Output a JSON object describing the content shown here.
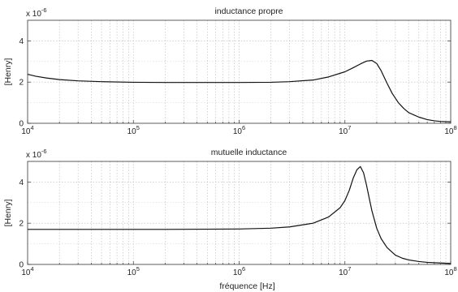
{
  "chart_data": [
    {
      "type": "line",
      "title": "inductance propre",
      "ylabel": "[Henry]",
      "xlabel": "",
      "xscale": "log",
      "xlim": [
        10000,
        100000000
      ],
      "ylim": [
        0,
        5
      ],
      "y_multiplier_label": "x 10",
      "y_multiplier_exponent": "-6",
      "grid": true,
      "x_tick_labels": [
        {
          "base": "10",
          "exp": "4",
          "value": 10000
        },
        {
          "base": "10",
          "exp": "5",
          "value": 100000
        },
        {
          "base": "10",
          "exp": "6",
          "value": 1000000
        },
        {
          "base": "10",
          "exp": "7",
          "value": 10000000
        },
        {
          "base": "10",
          "exp": "8",
          "value": 100000000
        }
      ],
      "y_ticks": [
        {
          "label": "0",
          "value": 0
        },
        {
          "label": "2",
          "value": 2
        },
        {
          "label": "4",
          "value": 4
        }
      ],
      "series": [
        {
          "x": [
            10000,
            12000,
            15000,
            20000,
            30000,
            50000,
            100000,
            200000,
            500000,
            1000000,
            2000000,
            3000000,
            5000000,
            7000000,
            10000000,
            12000000,
            14000000,
            16000000,
            18000000,
            20000000,
            22000000,
            25000000,
            28000000,
            32000000,
            36000000,
            40000000,
            50000000,
            60000000,
            70000000,
            80000000,
            100000000
          ],
          "values": [
            2.38,
            2.28,
            2.2,
            2.12,
            2.06,
            2.02,
            1.99,
            1.98,
            1.98,
            1.98,
            1.99,
            2.02,
            2.1,
            2.25,
            2.5,
            2.7,
            2.88,
            3.02,
            3.05,
            2.9,
            2.55,
            1.95,
            1.45,
            1.0,
            0.72,
            0.52,
            0.3,
            0.18,
            0.12,
            0.09,
            0.07
          ]
        }
      ]
    },
    {
      "type": "line",
      "title": "mutuelle inductance",
      "ylabel": "[Henry]",
      "xlabel": "fréquence [Hz]",
      "xscale": "log",
      "xlim": [
        10000,
        100000000
      ],
      "ylim": [
        0,
        5
      ],
      "y_multiplier_label": "x 10",
      "y_multiplier_exponent": "-6",
      "grid": true,
      "x_tick_labels": [
        {
          "base": "10",
          "exp": "4",
          "value": 10000
        },
        {
          "base": "10",
          "exp": "5",
          "value": 100000
        },
        {
          "base": "10",
          "exp": "6",
          "value": 1000000
        },
        {
          "base": "10",
          "exp": "7",
          "value": 10000000
        },
        {
          "base": "10",
          "exp": "8",
          "value": 100000000
        }
      ],
      "y_ticks": [
        {
          "label": "0",
          "value": 0
        },
        {
          "label": "2",
          "value": 2
        },
        {
          "label": "4",
          "value": 4
        }
      ],
      "series": [
        {
          "x": [
            10000,
            15000,
            20000,
            30000,
            50000,
            100000,
            200000,
            500000,
            1000000,
            2000000,
            3000000,
            5000000,
            7000000,
            9000000,
            10000000,
            11000000,
            12000000,
            13000000,
            14000000,
            15000000,
            16000000,
            17000000,
            18000000,
            20000000,
            22000000,
            25000000,
            30000000,
            35000000,
            40000000,
            50000000,
            60000000,
            80000000,
            100000000
          ],
          "values": [
            1.7,
            1.7,
            1.7,
            1.7,
            1.7,
            1.7,
            1.7,
            1.71,
            1.72,
            1.76,
            1.82,
            2.0,
            2.3,
            2.75,
            3.1,
            3.6,
            4.2,
            4.6,
            4.75,
            4.45,
            3.85,
            3.2,
            2.6,
            1.75,
            1.25,
            0.82,
            0.45,
            0.3,
            0.22,
            0.14,
            0.1,
            0.07,
            0.05
          ]
        }
      ]
    }
  ]
}
